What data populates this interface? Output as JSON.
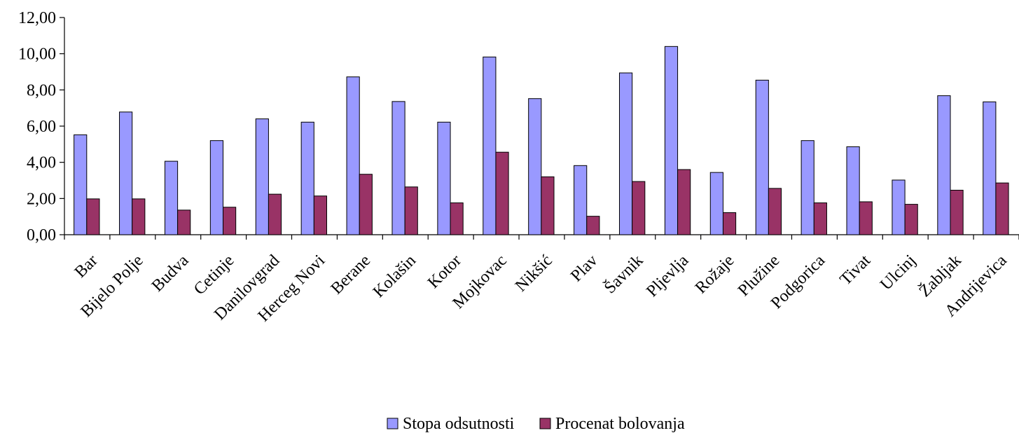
{
  "chart_data": {
    "type": "bar",
    "categories": [
      "Bar",
      "Bijelo Polje",
      "Budva",
      "Cetinje",
      "Danilovgrad",
      "Herceg Novi",
      "Berane",
      "Kolašin",
      "Kotor",
      "Mojkovac",
      "Nikšić",
      "Plav",
      "Šavnik",
      "Pljevlja",
      "Rožaje",
      "Plužine",
      "Podgorica",
      "Tivat",
      "Ulcinj",
      "Žabljak",
      "Andrijevica"
    ],
    "series": [
      {
        "name": "Stopa odsutnosti",
        "color": "#9999ff",
        "values": [
          5.52,
          6.78,
          4.06,
          5.2,
          6.4,
          6.22,
          8.72,
          7.36,
          6.22,
          9.82,
          7.52,
          3.82,
          8.94,
          10.4,
          3.44,
          8.54,
          5.2,
          4.86,
          3.02,
          7.68,
          7.34
        ]
      },
      {
        "name": "Procenat bolovanja",
        "color": "#993366",
        "values": [
          1.98,
          1.98,
          1.36,
          1.52,
          2.24,
          2.14,
          3.34,
          2.64,
          1.76,
          4.56,
          3.2,
          1.02,
          2.94,
          3.6,
          1.22,
          2.56,
          1.76,
          1.82,
          1.68,
          2.46,
          2.86
        ]
      }
    ],
    "ylim": [
      0,
      12
    ],
    "yticks": [
      "0,00",
      "2,00",
      "4,00",
      "6,00",
      "8,00",
      "10,00",
      "12,00"
    ],
    "xlabel": "",
    "ylabel": "",
    "title": "",
    "grid": false,
    "legend_position": "bottom"
  }
}
